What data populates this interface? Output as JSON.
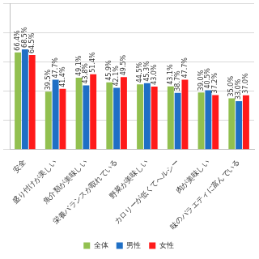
{
  "chart_data": {
    "type": "bar",
    "categories": [
      "安全",
      "盛り付けが美しい",
      "魚介類が美味しい",
      "栄養バランスが取れている",
      "野菜が美味しい",
      "カロリーが低くてヘルシー",
      "肉が美味しい",
      "味のバラエティに富んでいる"
    ],
    "series": [
      {
        "name": "全体",
        "color": "#92c050",
        "values": [
          66.4,
          39.5,
          49.1,
          45.9,
          44.5,
          43.1,
          39.0,
          35.0
        ],
        "value_labels": [
          "66.4%",
          "39.5%",
          "49.1%",
          "45.9%",
          "44.5%",
          "43.1%",
          "39.0%",
          "35.0%"
        ]
      },
      {
        "name": "男性",
        "color": "#1f6fc5",
        "values": [
          68.5,
          47.7,
          43.8,
          42.1,
          45.3,
          38.7,
          40.5,
          33.0
        ],
        "value_labels": [
          "68.5%",
          "47.7%",
          "43.8%",
          "42.1%",
          "45.3%",
          "38.7%",
          "40.5%",
          "33.0%"
        ]
      },
      {
        "name": "女性",
        "color": "#ff1a1a",
        "values": [
          64.5,
          41.4,
          51.4,
          49.5,
          43.0,
          47.7,
          37.2,
          37.0
        ],
        "value_labels": [
          "64.5%",
          "41.4%",
          "51.4%",
          "49.5%",
          "43.0%",
          "47.7%",
          "37.2%",
          "37.0%"
        ]
      }
    ],
    "ylim": [
      0,
      100
    ],
    "yticks": [
      0,
      20,
      40,
      60,
      80,
      100
    ],
    "grid": true,
    "legend": "bottom",
    "data_labels": true,
    "tick_labels": "x"
  }
}
